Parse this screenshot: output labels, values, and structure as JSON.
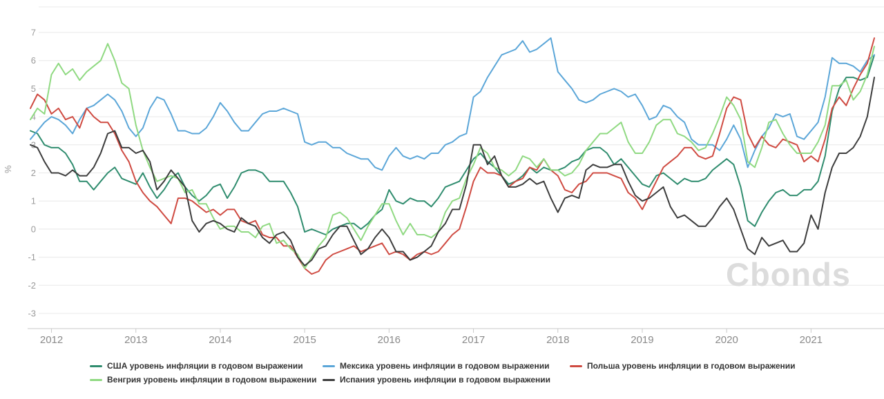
{
  "watermark": "Cbonds",
  "y_axis": {
    "label": "%",
    "ticks": [
      7,
      6,
      5,
      4,
      3,
      2,
      1,
      0,
      -1,
      -2,
      -3
    ]
  },
  "x_axis": {
    "ticks": [
      "2012",
      "2013",
      "2014",
      "2015",
      "2016",
      "2017",
      "2018",
      "2019",
      "2020",
      "2021"
    ]
  },
  "chart_data": {
    "type": "line",
    "title": "",
    "ylabel": "%",
    "ylim": [
      -3,
      7
    ],
    "grid": true,
    "legend_position": "bottom",
    "x_start": "2011-10",
    "x_end": "2021-10",
    "x_frequency": "monthly",
    "x_tick_years": [
      2012,
      2013,
      2014,
      2015,
      2016,
      2017,
      2018,
      2019,
      2020,
      2021
    ],
    "series": [
      {
        "id": "usa",
        "name": "США уровень инфляции в годовом выражении",
        "color": "#2f8c6e",
        "values": [
          3.5,
          3.4,
          3.0,
          2.9,
          2.9,
          2.7,
          2.3,
          1.7,
          1.7,
          1.4,
          1.7,
          2.0,
          2.2,
          1.8,
          1.7,
          1.6,
          2.0,
          1.5,
          1.1,
          1.4,
          1.8,
          2.0,
          1.5,
          1.2,
          1.0,
          1.2,
          1.5,
          1.6,
          1.1,
          1.5,
          2.0,
          2.1,
          2.1,
          2.0,
          1.7,
          1.7,
          1.7,
          1.3,
          0.8,
          -0.1,
          0.0,
          -0.1,
          -0.2,
          0.0,
          0.1,
          0.2,
          0.2,
          0.0,
          0.2,
          0.5,
          0.7,
          1.4,
          1.0,
          0.9,
          1.1,
          1.0,
          1.0,
          0.8,
          1.1,
          1.5,
          1.6,
          1.7,
          2.1,
          2.5,
          2.7,
          2.4,
          2.2,
          1.9,
          1.6,
          1.7,
          1.9,
          2.2,
          2.0,
          2.2,
          2.1,
          2.1,
          2.2,
          2.4,
          2.5,
          2.8,
          2.9,
          2.9,
          2.7,
          2.3,
          2.5,
          2.2,
          1.9,
          1.6,
          1.5,
          1.9,
          2.0,
          1.8,
          1.6,
          1.8,
          1.7,
          1.7,
          1.8,
          2.1,
          2.3,
          2.5,
          2.3,
          1.5,
          0.3,
          0.1,
          0.6,
          1.0,
          1.3,
          1.4,
          1.2,
          1.2,
          1.4,
          1.4,
          1.7,
          2.6,
          4.2,
          5.0,
          5.4,
          5.4,
          5.3,
          5.4,
          6.2
        ]
      },
      {
        "id": "mexico",
        "name": "Мексика уровень инфляции в годовом выражении",
        "color": "#5ba6d8",
        "values": [
          3.2,
          3.5,
          3.8,
          4.0,
          3.9,
          3.7,
          3.4,
          3.9,
          4.3,
          4.4,
          4.6,
          4.8,
          4.6,
          4.2,
          3.6,
          3.3,
          3.6,
          4.3,
          4.7,
          4.6,
          4.1,
          3.5,
          3.5,
          3.4,
          3.4,
          3.6,
          4.0,
          4.5,
          4.2,
          3.8,
          3.5,
          3.5,
          3.8,
          4.1,
          4.2,
          4.2,
          4.3,
          4.2,
          4.1,
          3.1,
          3.0,
          3.1,
          3.1,
          2.9,
          2.9,
          2.7,
          2.6,
          2.5,
          2.5,
          2.2,
          2.1,
          2.6,
          2.9,
          2.6,
          2.5,
          2.6,
          2.5,
          2.7,
          2.7,
          3.0,
          3.1,
          3.3,
          3.4,
          4.7,
          4.9,
          5.4,
          5.8,
          6.2,
          6.3,
          6.4,
          6.7,
          6.3,
          6.4,
          6.6,
          6.8,
          5.6,
          5.3,
          5.0,
          4.6,
          4.5,
          4.6,
          4.8,
          4.9,
          5.0,
          4.9,
          4.7,
          4.8,
          4.4,
          3.9,
          4.0,
          4.4,
          4.3,
          4.0,
          3.8,
          3.2,
          3.0,
          3.0,
          3.0,
          2.8,
          3.2,
          3.7,
          3.2,
          2.2,
          2.8,
          3.3,
          3.6,
          4.1,
          4.0,
          4.1,
          3.3,
          3.2,
          3.5,
          3.8,
          4.7,
          6.1,
          5.9,
          5.9,
          5.8,
          5.6,
          6.0,
          6.2
        ]
      },
      {
        "id": "poland",
        "name": "Польша уровень инфляции в годовом выражении",
        "color": "#cf4a41",
        "values": [
          4.3,
          4.8,
          4.6,
          4.1,
          4.3,
          3.9,
          4.0,
          3.6,
          4.3,
          4.0,
          3.8,
          3.8,
          3.4,
          2.8,
          2.4,
          1.7,
          1.3,
          1.0,
          0.8,
          0.5,
          0.2,
          1.1,
          1.1,
          1.0,
          0.8,
          0.6,
          0.7,
          0.5,
          0.7,
          0.7,
          0.3,
          0.2,
          0.3,
          -0.2,
          -0.3,
          -0.3,
          -0.6,
          -0.6,
          -1.0,
          -1.4,
          -1.6,
          -1.5,
          -1.1,
          -0.9,
          -0.8,
          -0.7,
          -0.6,
          -0.8,
          -0.7,
          -0.6,
          -0.5,
          -0.9,
          -0.8,
          -0.9,
          -1.1,
          -0.9,
          -0.8,
          -0.9,
          -0.8,
          -0.5,
          -0.2,
          0.0,
          0.8,
          1.7,
          2.2,
          2.0,
          2.0,
          1.9,
          1.5,
          1.7,
          1.8,
          2.2,
          2.1,
          2.5,
          2.1,
          1.9,
          1.4,
          1.3,
          1.6,
          1.7,
          2.0,
          2.0,
          2.0,
          1.9,
          1.8,
          1.3,
          1.1,
          0.7,
          1.2,
          1.7,
          2.2,
          2.4,
          2.6,
          2.9,
          2.9,
          2.6,
          2.5,
          2.6,
          3.4,
          4.3,
          4.7,
          4.6,
          3.4,
          2.9,
          3.3,
          3.0,
          2.9,
          3.2,
          3.1,
          3.0,
          2.4,
          2.6,
          2.4,
          3.2,
          4.3,
          4.7,
          4.4,
          5.0,
          5.5,
          5.9,
          6.8
        ]
      },
      {
        "id": "hungary",
        "name": "Венгрия уровень инфляции в годовом выражении",
        "color": "#8fd981",
        "values": [
          3.9,
          4.3,
          4.1,
          5.5,
          5.9,
          5.5,
          5.7,
          5.3,
          5.6,
          5.8,
          6.0,
          6.6,
          6.0,
          5.2,
          5.0,
          3.7,
          2.8,
          2.2,
          1.7,
          1.8,
          1.9,
          1.8,
          1.3,
          1.4,
          0.9,
          0.9,
          0.4,
          0.0,
          0.1,
          0.1,
          -0.1,
          -0.1,
          -0.3,
          0.1,
          0.2,
          -0.5,
          -0.4,
          -0.7,
          -0.9,
          -1.4,
          -1.0,
          -0.6,
          -0.3,
          0.5,
          0.6,
          0.4,
          0.0,
          -0.4,
          0.1,
          0.5,
          0.9,
          0.9,
          0.3,
          -0.2,
          0.2,
          -0.2,
          -0.2,
          -0.3,
          -0.1,
          0.6,
          1.0,
          1.1,
          1.8,
          2.3,
          2.9,
          2.7,
          2.2,
          2.1,
          1.9,
          2.1,
          2.6,
          2.5,
          2.2,
          2.5,
          2.1,
          2.1,
          1.9,
          2.0,
          2.3,
          2.8,
          3.1,
          3.4,
          3.4,
          3.6,
          3.8,
          3.1,
          2.7,
          2.7,
          3.1,
          3.7,
          3.9,
          3.9,
          3.4,
          3.3,
          3.1,
          2.8,
          2.9,
          3.4,
          4.0,
          4.7,
          4.4,
          3.9,
          2.4,
          2.2,
          2.9,
          3.8,
          3.9,
          3.4,
          3.0,
          2.7,
          2.7,
          2.7,
          3.1,
          3.7,
          5.1,
          5.1,
          5.3,
          4.6,
          4.9,
          5.5,
          6.5
        ]
      },
      {
        "id": "spain",
        "name": "Испания уровень инфляции в годовом выражении",
        "color": "#3c3c3c",
        "values": [
          3.0,
          2.9,
          2.4,
          2.0,
          2.0,
          1.9,
          2.1,
          1.9,
          1.9,
          2.2,
          2.7,
          3.4,
          3.5,
          2.9,
          2.9,
          2.7,
          2.8,
          2.4,
          1.4,
          1.7,
          2.1,
          1.8,
          1.5,
          0.3,
          -0.1,
          0.2,
          0.3,
          0.2,
          0.0,
          -0.1,
          0.4,
          0.2,
          0.1,
          -0.3,
          -0.5,
          -0.2,
          -0.1,
          -0.4,
          -1.0,
          -1.3,
          -1.1,
          -0.7,
          -0.6,
          -0.2,
          0.1,
          0.1,
          -0.4,
          -0.9,
          -0.7,
          -0.3,
          0.0,
          -0.3,
          -0.8,
          -0.8,
          -1.1,
          -1.0,
          -0.8,
          -0.6,
          -0.1,
          0.2,
          0.7,
          0.7,
          1.6,
          3.0,
          3.0,
          2.3,
          2.6,
          1.9,
          1.5,
          1.5,
          1.6,
          1.8,
          1.6,
          1.7,
          1.1,
          0.6,
          1.1,
          1.2,
          1.1,
          2.1,
          2.3,
          2.2,
          2.2,
          2.3,
          2.3,
          1.7,
          1.2,
          1.0,
          1.1,
          1.3,
          1.5,
          0.8,
          0.4,
          0.5,
          0.3,
          0.1,
          0.1,
          0.4,
          0.8,
          1.1,
          0.7,
          0.0,
          -0.7,
          -0.9,
          -0.3,
          -0.6,
          -0.5,
          -0.4,
          -0.8,
          -0.8,
          -0.5,
          0.5,
          0.0,
          1.3,
          2.2,
          2.7,
          2.7,
          2.9,
          3.3,
          4.0,
          5.4
        ]
      }
    ]
  },
  "layout_colors": {
    "grid": "#e8e8e8",
    "axis": "#c9c9c9",
    "y_label": "#9b9b9b",
    "x_label": "#8a8a8a",
    "legend_text": "#333333",
    "watermark": "#dcdcdc"
  }
}
